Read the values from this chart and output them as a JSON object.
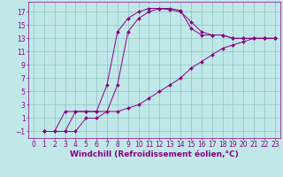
{
  "background_color": "#c0e8e8",
  "grid_color": "#90c0c0",
  "line_color": "#880088",
  "marker_color": "#880088",
  "xlabel": "Windchill (Refroidissement éolien,°C)",
  "xlim": [
    -0.5,
    23.5
  ],
  "ylim": [
    -2.0,
    18.5
  ],
  "xticks": [
    0,
    1,
    2,
    3,
    4,
    5,
    6,
    7,
    8,
    9,
    10,
    11,
    12,
    13,
    14,
    15,
    16,
    17,
    18,
    19,
    20,
    21,
    22,
    23
  ],
  "yticks": [
    -1,
    1,
    3,
    5,
    7,
    9,
    11,
    13,
    15,
    17
  ],
  "curve1_x": [
    1,
    2,
    3,
    4,
    5,
    6,
    7,
    8,
    9,
    10,
    11,
    12,
    13,
    14,
    15,
    16,
    17,
    18,
    19,
    20,
    21,
    22,
    23
  ],
  "curve1_y": [
    -1,
    -1,
    2,
    2,
    2,
    2,
    6,
    14,
    16,
    17,
    17.5,
    17.5,
    17.3,
    17.0,
    15.5,
    14,
    13.5,
    13.5,
    13,
    13,
    13,
    13,
    13
  ],
  "curve2_x": [
    1,
    3,
    4,
    5,
    6,
    7,
    8,
    9,
    10,
    11,
    12,
    13,
    14,
    15,
    16,
    17,
    18,
    19,
    20,
    21,
    22,
    23
  ],
  "curve2_y": [
    -1,
    -1,
    2,
    2,
    2,
    2,
    6,
    14,
    16,
    17,
    17.5,
    17.5,
    17.2,
    14.5,
    13.5,
    13.5,
    13.5,
    13,
    13,
    13,
    13,
    13
  ],
  "curve3_x": [
    1,
    2,
    3,
    4,
    5,
    6,
    7,
    8,
    9,
    10,
    11,
    12,
    13,
    14,
    15,
    16,
    17,
    18,
    19,
    20,
    21,
    22,
    23
  ],
  "curve3_y": [
    -1,
    -1,
    -1,
    -1,
    1,
    1,
    2,
    2,
    2.5,
    3,
    4,
    5,
    6,
    7,
    8.5,
    9.5,
    10.5,
    11.5,
    12.0,
    12.5,
    13,
    13,
    13
  ],
  "tick_fontsize": 5.5,
  "label_fontsize": 6.5
}
